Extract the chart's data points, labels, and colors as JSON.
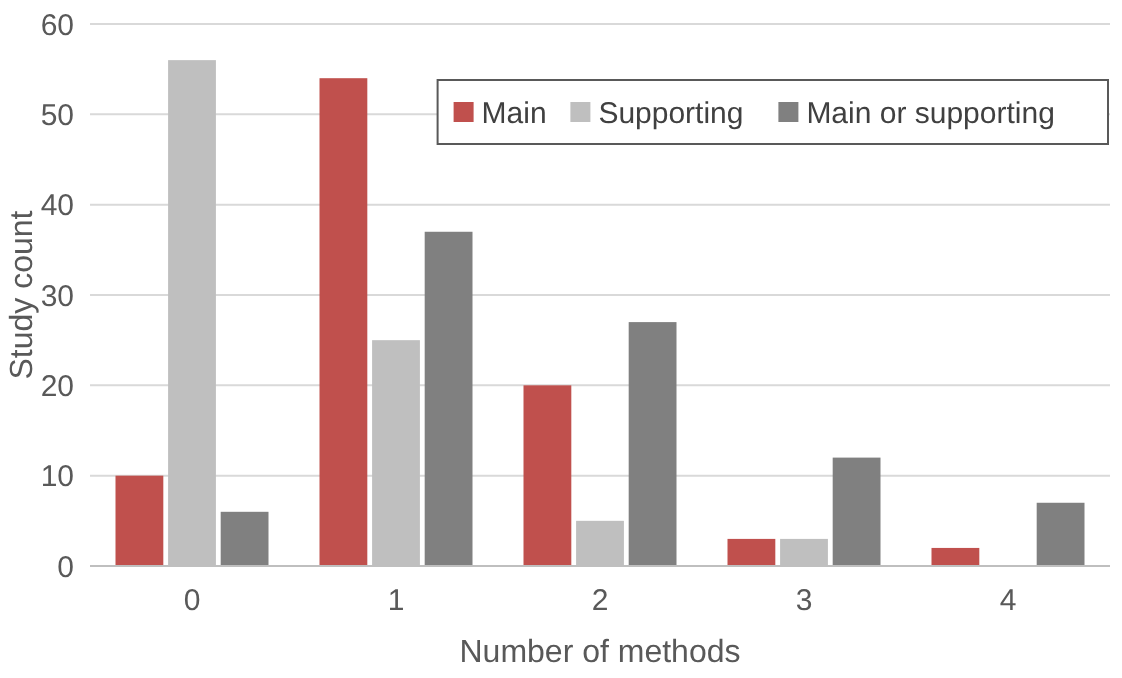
{
  "chart_data": {
    "type": "bar",
    "xlabel": "Number of methods",
    "ylabel": "Study count",
    "categories": [
      "0",
      "1",
      "2",
      "3",
      "4"
    ],
    "series": [
      {
        "name": "Main",
        "color": "#c0504d",
        "values": [
          10,
          54,
          20,
          3,
          2
        ]
      },
      {
        "name": "Supporting",
        "color": "#bfbfbf",
        "values": [
          56,
          25,
          5,
          3,
          0
        ]
      },
      {
        "name": "Main or supporting",
        "color": "#808080",
        "values": [
          6,
          37,
          27,
          12,
          7
        ]
      }
    ],
    "ylim": [
      0,
      60
    ],
    "yticks": [
      0,
      10,
      20,
      30,
      40,
      50,
      60
    ],
    "grid": "y",
    "legend": "top right"
  }
}
